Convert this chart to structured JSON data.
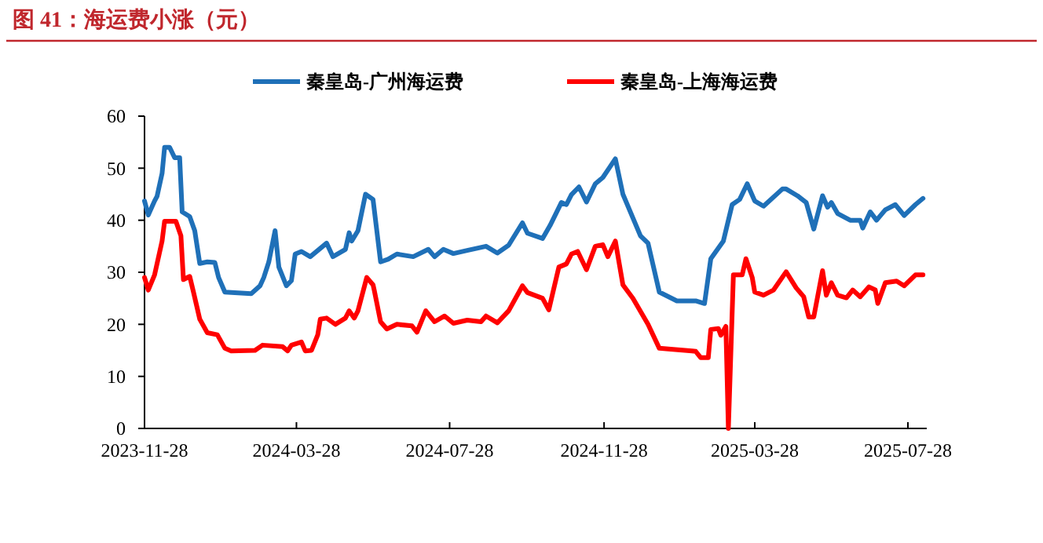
{
  "chart_data": {
    "type": "line",
    "title": "图 41：海运费小涨（元）",
    "legend": "top",
    "line_style": "solid",
    "marker": "none",
    "grid": false,
    "xlim": [
      "2023-11-28",
      "2025-08-12"
    ],
    "xticks": [
      "2023-11-28",
      "2024-03-28",
      "2024-07-28",
      "2024-11-28",
      "2025-03-28",
      "2025-07-28"
    ],
    "ylim": [
      0,
      60
    ],
    "yticks": [
      0,
      10,
      20,
      30,
      40,
      50,
      60
    ],
    "series": [
      {
        "name": "秦皇岛-广州海运费",
        "color": "#1f70b8",
        "x": [
          "2023-11-28",
          "2023-12-01",
          "2023-12-06",
          "2023-12-08",
          "2023-12-12",
          "2023-12-14",
          "2023-12-18",
          "2023-12-22",
          "2023-12-26",
          "2023-12-28",
          "2024-01-03",
          "2024-01-07",
          "2024-01-11",
          "2024-01-17",
          "2024-01-23",
          "2024-01-26",
          "2024-01-31",
          "2024-02-21",
          "2024-02-28",
          "2024-03-02",
          "2024-03-06",
          "2024-03-11",
          "2024-03-14",
          "2024-03-20",
          "2024-03-24",
          "2024-03-27",
          "2024-04-01",
          "2024-04-08",
          "2024-04-18",
          "2024-04-21",
          "2024-04-26",
          "2024-05-06",
          "2024-05-09",
          "2024-05-11",
          "2024-05-16",
          "2024-05-22",
          "2024-05-28",
          "2024-06-03",
          "2024-06-09",
          "2024-06-16",
          "2024-06-29",
          "2024-07-11",
          "2024-07-16",
          "2024-07-23",
          "2024-07-31",
          "2024-08-11",
          "2024-08-26",
          "2024-09-04",
          "2024-09-13",
          "2024-09-24",
          "2024-09-28",
          "2024-10-10",
          "2024-10-16",
          "2024-10-25",
          "2024-10-29",
          "2024-11-02",
          "2024-11-08",
          "2024-11-14",
          "2024-11-21",
          "2024-11-27",
          "2024-12-02",
          "2024-12-07",
          "2024-12-13",
          "2024-12-27",
          "2025-01-02",
          "2025-01-11",
          "2025-01-25",
          "2025-02-09",
          "2025-02-16",
          "2025-02-21",
          "2025-03-03",
          "2025-03-10",
          "2025-03-16",
          "2025-03-22",
          "2025-03-28",
          "2025-04-04",
          "2025-04-19",
          "2025-04-22",
          "2025-05-01",
          "2025-05-08",
          "2025-05-14",
          "2025-05-21",
          "2025-05-25",
          "2025-05-28",
          "2025-06-02",
          "2025-06-12",
          "2025-06-20",
          "2025-06-22",
          "2025-06-28",
          "2025-07-03",
          "2025-07-10",
          "2025-07-18",
          "2025-07-25",
          "2025-08-03",
          "2025-08-09"
        ],
        "values": [
          43.7,
          41,
          43.7,
          44.6,
          49,
          54,
          54,
          52,
          52,
          41.6,
          40.7,
          38,
          31.7,
          32,
          31.9,
          29,
          26.2,
          25.9,
          27.4,
          29,
          32,
          38,
          31,
          27.4,
          28.4,
          33.5,
          34,
          33,
          35,
          35.6,
          33,
          34.4,
          37.6,
          36,
          38,
          45,
          44,
          32,
          32.5,
          33.5,
          33,
          34.4,
          33,
          34.4,
          33.6,
          34.2,
          35,
          33.7,
          35.2,
          39.5,
          37.5,
          36.5,
          39,
          43.4,
          43,
          44.9,
          46.4,
          43.5,
          47,
          48.2,
          50,
          51.8,
          45,
          37,
          35.6,
          26.2,
          24.5,
          24.5,
          24,
          32.6,
          36,
          43,
          44,
          47,
          43.7,
          42.7,
          46,
          46,
          44.7,
          43.4,
          38.3,
          44.7,
          42.5,
          43.4,
          41.3,
          40,
          40,
          38.5,
          41.6,
          40,
          42,
          43,
          40.9,
          43,
          44.2
        ]
      },
      {
        "name": "秦皇岛-上海海运费",
        "color": "#ff0000",
        "x": [
          "2023-11-28",
          "2023-12-01",
          "2023-12-06",
          "2023-12-12",
          "2023-12-14",
          "2023-12-23",
          "2023-12-27",
          "2023-12-29",
          "2024-01-03",
          "2024-01-06",
          "2024-01-11",
          "2024-01-17",
          "2024-01-25",
          "2024-01-31",
          "2024-02-05",
          "2024-02-24",
          "2024-03-01",
          "2024-03-17",
          "2024-03-21",
          "2024-03-24",
          "2024-04-01",
          "2024-04-04",
          "2024-04-09",
          "2024-04-14",
          "2024-04-16",
          "2024-04-21",
          "2024-04-28",
          "2024-05-06",
          "2024-05-09",
          "2024-05-13",
          "2024-05-16",
          "2024-05-23",
          "2024-05-28",
          "2024-05-29",
          "2024-06-03",
          "2024-06-08",
          "2024-06-16",
          "2024-06-28",
          "2024-07-02",
          "2024-07-09",
          "2024-07-16",
          "2024-07-24",
          "2024-07-31",
          "2024-08-11",
          "2024-08-22",
          "2024-08-26",
          "2024-09-04",
          "2024-09-13",
          "2024-09-24",
          "2024-09-28",
          "2024-10-10",
          "2024-10-15",
          "2024-10-23",
          "2024-10-29",
          "2024-11-02",
          "2024-11-07",
          "2024-11-14",
          "2024-11-21",
          "2024-11-27",
          "2024-12-01",
          "2024-12-07",
          "2024-12-13",
          "2024-12-21",
          "2025-01-02",
          "2025-01-11",
          "2025-01-22",
          "2025-02-06",
          "2025-02-09",
          "2025-02-13",
          "2025-02-19",
          "2025-02-21",
          "2025-02-27",
          "2025-03-01",
          "2025-03-05",
          "2025-03-07",
          "2025-03-11",
          "2025-03-18",
          "2025-03-21",
          "2025-03-26",
          "2025-03-28",
          "2025-04-04",
          "2025-04-12",
          "2025-04-22",
          "2025-04-30",
          "2025-05-06",
          "2025-05-10",
          "2025-05-14",
          "2025-05-21",
          "2025-05-24",
          "2025-05-28",
          "2025-06-02",
          "2025-06-09",
          "2025-06-14",
          "2025-06-20",
          "2025-06-27",
          "2025-07-02",
          "2025-07-04",
          "2025-07-10",
          "2025-07-19",
          "2025-07-25",
          "2025-08-03",
          "2025-08-09"
        ],
        "values": [
          29,
          26.6,
          29.5,
          36,
          39.8,
          39.8,
          37,
          28.6,
          29.2,
          26.2,
          21,
          18.4,
          18,
          15.4,
          14.9,
          15,
          16,
          15.7,
          14.9,
          16,
          16.6,
          14.9,
          15,
          18,
          21,
          21.2,
          20,
          21.2,
          22.6,
          21.2,
          22.6,
          29,
          27.6,
          26.5,
          20.5,
          19.1,
          20,
          19.7,
          18.5,
          22.6,
          20.5,
          21.6,
          20.2,
          20.8,
          20.5,
          21.6,
          20.3,
          22.6,
          27.4,
          26.1,
          25,
          22.8,
          31,
          31.6,
          33.5,
          34,
          30.5,
          35,
          35.3,
          33,
          36,
          27.6,
          25,
          20,
          15.4,
          15.2,
          14.9,
          14.8,
          13.6,
          13.6,
          19,
          19.2,
          17.9,
          19.6,
          0,
          29.5,
          29.5,
          32.6,
          29,
          26.2,
          25.6,
          26.6,
          30.1,
          27,
          25.3,
          21.4,
          21.4,
          30.3,
          25.6,
          28,
          25.6,
          25.1,
          26.6,
          25.3,
          27.2,
          26.6,
          24,
          28,
          28.3,
          27.4,
          29.5,
          29.5
        ]
      }
    ]
  }
}
